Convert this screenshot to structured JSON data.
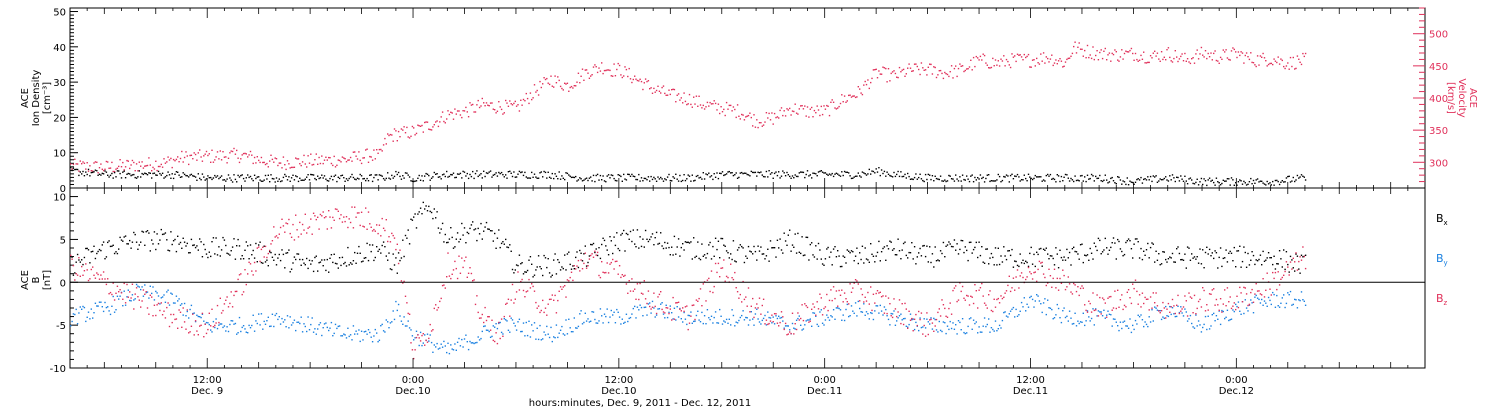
{
  "figure": {
    "xlabel": "hours:minutes, Dec. 9, 2011 - Dec. 12, 2011",
    "time_ticks": [
      {
        "hour": 12,
        "line1": "12:00",
        "line2": "Dec. 9"
      },
      {
        "hour": 24,
        "line1": "0:00",
        "line2": "Dec.10"
      },
      {
        "hour": 36,
        "line1": "12:00",
        "line2": "Dec.10"
      },
      {
        "hour": 48,
        "line1": "0:00",
        "line2": "Dec.11"
      },
      {
        "hour": 60,
        "line1": "12:00",
        "line2": "Dec.11"
      },
      {
        "hour": 72,
        "line1": "0:00",
        "line2": "Dec.12"
      }
    ],
    "time_range_hours": [
      4,
      83
    ],
    "data_end_hour": 76
  },
  "chart_data": [
    {
      "type": "scatter",
      "panel": "top",
      "ylabel_left": [
        "ACE",
        "Ion Density",
        "[cm⁻³]"
      ],
      "ylabel_right": [
        "ACE",
        "Velocity",
        "[km/s]"
      ],
      "ylim": [
        0,
        51
      ],
      "yticks": [
        0,
        10,
        20,
        30,
        40,
        50
      ],
      "y2lim": [
        260,
        540
      ],
      "y2ticks": [
        300,
        350,
        400,
        450,
        500
      ],
      "grid": false,
      "series": [
        {
          "axis": "right",
          "color": "#e0305a",
          "x": [
            4,
            6,
            8,
            9.5,
            10.5,
            12,
            14,
            15,
            16,
            18,
            20,
            21.5,
            22,
            22.5,
            23,
            24,
            25,
            26,
            27,
            28,
            30,
            31,
            32,
            33,
            34,
            35,
            35.5,
            36,
            37,
            38,
            39,
            40,
            41,
            42,
            43,
            44,
            45,
            46,
            47,
            48,
            49,
            50,
            51,
            52,
            53,
            54,
            55,
            56,
            57,
            58,
            59,
            60,
            61,
            62,
            62.5,
            63,
            64,
            65,
            66,
            67,
            68,
            69,
            70,
            71,
            72,
            73,
            74,
            75,
            76
          ],
          "y": [
            295,
            293,
            297,
            300,
            308,
            310,
            312,
            305,
            300,
            303,
            305,
            312,
            310,
            340,
            345,
            348,
            360,
            375,
            380,
            390,
            385,
            410,
            430,
            420,
            440,
            450,
            445,
            445,
            430,
            415,
            405,
            400,
            390,
            385,
            380,
            365,
            370,
            385,
            380,
            380,
            398,
            410,
            440,
            435,
            445,
            445,
            440,
            445,
            460,
            455,
            460,
            460,
            465,
            455,
            480,
            475,
            470,
            468,
            470,
            465,
            470,
            460,
            470,
            465,
            470,
            460,
            462,
            455,
            460
          ]
        },
        {
          "axis": "left",
          "name": "density",
          "color": "#000000",
          "x": [
            4,
            6,
            8,
            10,
            12,
            14,
            16,
            18,
            20,
            22,
            23,
            24,
            26,
            28,
            30,
            32,
            34,
            36,
            38,
            40,
            42,
            44,
            46,
            48,
            50,
            51,
            52,
            54,
            56,
            58,
            60,
            62,
            64,
            66,
            68,
            70,
            72,
            74,
            76
          ],
          "y": [
            5,
            4,
            4,
            4,
            3,
            3,
            3,
            3,
            3,
            3,
            4,
            3,
            4,
            4,
            4,
            4,
            3,
            3,
            3,
            3,
            4,
            4,
            4,
            4,
            4,
            5,
            4,
            3,
            3,
            3,
            3,
            3,
            3,
            2,
            3,
            2,
            2,
            2,
            3
          ]
        }
      ]
    },
    {
      "type": "scatter",
      "panel": "bottom",
      "ylabel_left": [
        "ACE",
        "B",
        "[nT]"
      ],
      "ylim": [
        -10,
        11
      ],
      "yticks": [
        -10,
        -5,
        0,
        5,
        10
      ],
      "zero_line": true,
      "grid": false,
      "legend_position": "right",
      "series": [
        {
          "name": "Bx",
          "legend_base": "B",
          "legend_sub": "x",
          "color": "#000000",
          "x": [
            4,
            6,
            8,
            10,
            12,
            14,
            16,
            18,
            20,
            22,
            23,
            24,
            25,
            26,
            27,
            28,
            29,
            30,
            32,
            34,
            36,
            38,
            40,
            42,
            44,
            46,
            48,
            50,
            52,
            54,
            56,
            58,
            60,
            62,
            64,
            66,
            68,
            70,
            72,
            74,
            76
          ],
          "y": [
            2,
            4,
            5,
            5,
            4,
            4,
            3,
            2,
            3,
            4,
            2,
            7,
            9,
            5,
            6,
            6,
            5,
            2,
            2,
            3,
            5,
            5,
            4,
            4,
            3,
            5,
            3,
            3,
            4,
            3,
            4,
            3,
            3,
            3,
            4,
            4,
            3,
            3,
            3,
            3,
            2
          ]
        },
        {
          "name": "By",
          "legend_base": "B",
          "legend_sub": "y",
          "color": "#1a80e0",
          "x": [
            4,
            6,
            8,
            10,
            12,
            14,
            16,
            18,
            20,
            22,
            23,
            24,
            25,
            26,
            27,
            28,
            29,
            30,
            32,
            34,
            36,
            38,
            40,
            42,
            44,
            46,
            48,
            50,
            52,
            54,
            56,
            58,
            60,
            62,
            64,
            66,
            68,
            70,
            72,
            74,
            76
          ],
          "y": [
            -4,
            -3,
            -1,
            -2,
            -5,
            -5,
            -4,
            -5,
            -6,
            -6,
            -3,
            -6,
            -7,
            -8,
            -7,
            -6,
            -5,
            -5,
            -6,
            -4,
            -4,
            -3,
            -4,
            -4,
            -4,
            -5,
            -4,
            -3,
            -4,
            -5,
            -5,
            -5,
            -2,
            -4,
            -4,
            -5,
            -3,
            -5,
            -3,
            -2,
            -2
          ]
        },
        {
          "name": "Bz",
          "legend_base": "B",
          "legend_sub": "z",
          "color": "#e0305a",
          "x": [
            4,
            6,
            8,
            10,
            12,
            14,
            16,
            18,
            20,
            22,
            23,
            24,
            25,
            26,
            27,
            28,
            29,
            30,
            32,
            34,
            36,
            38,
            40,
            42,
            44,
            46,
            48,
            50,
            52,
            54,
            56,
            58,
            60,
            62,
            64,
            66,
            68,
            70,
            72,
            74,
            76
          ],
          "y": [
            2,
            0,
            -2,
            -4,
            -5,
            0,
            6,
            7,
            8,
            7,
            5,
            -8,
            -5,
            2,
            2,
            -4,
            -6,
            0,
            -3,
            3,
            1,
            -2,
            -4,
            2,
            -3,
            -5,
            -2,
            -1,
            -3,
            -5,
            -1,
            -2,
            2,
            0,
            -3,
            -1,
            -3,
            -2,
            -2,
            0,
            3
          ]
        }
      ]
    }
  ]
}
